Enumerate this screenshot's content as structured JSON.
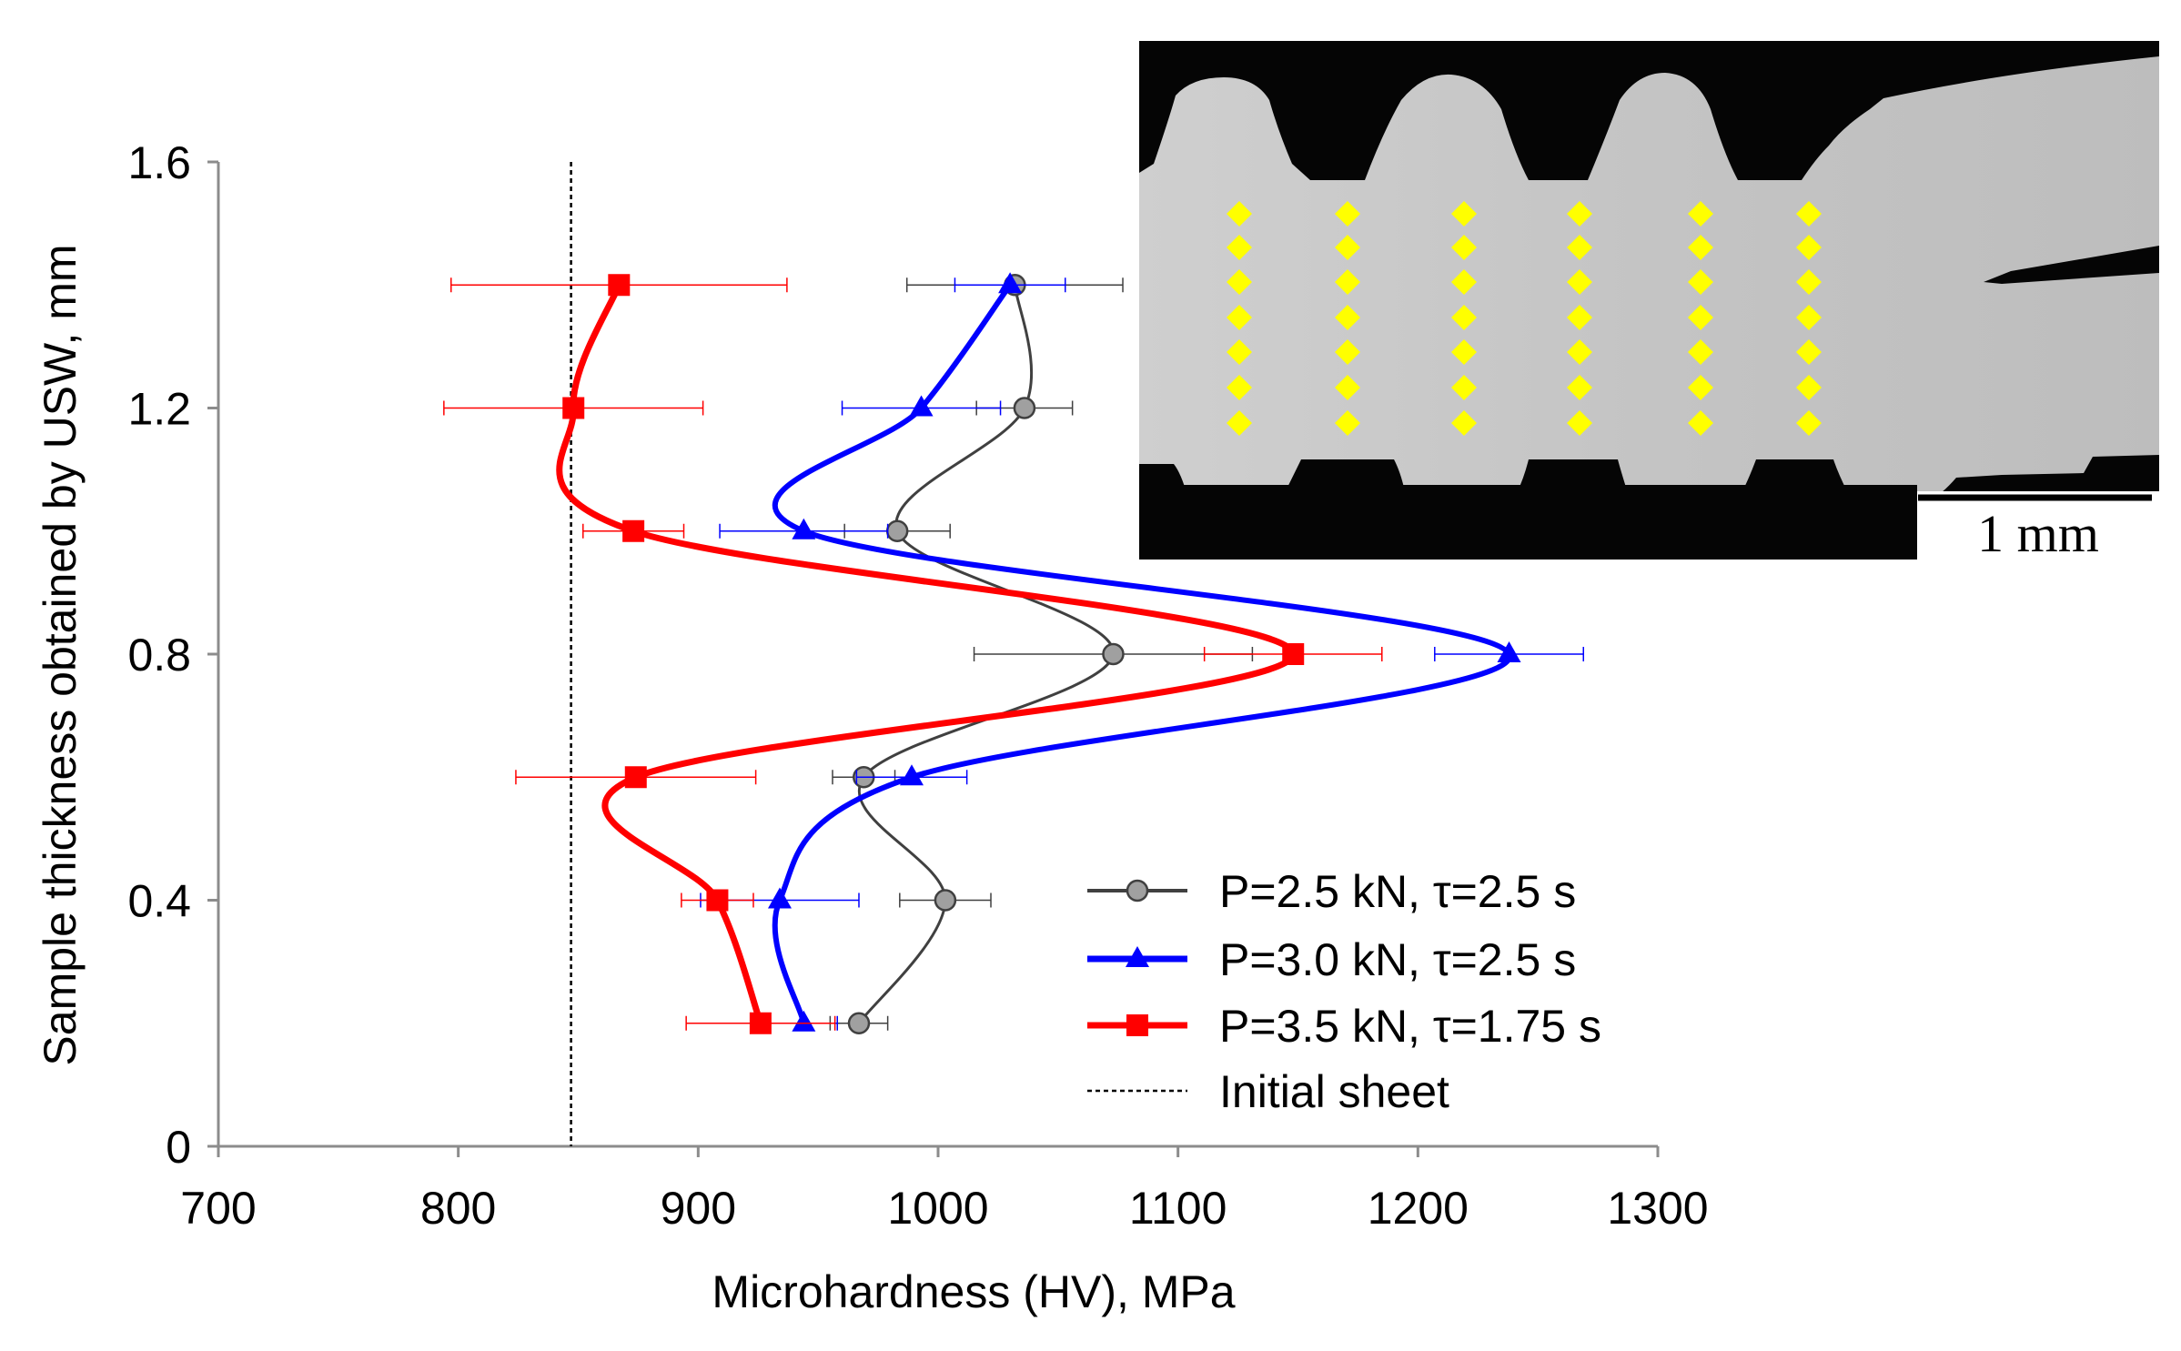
{
  "chart_data": {
    "type": "line",
    "orientation": "x-value-vs-y-position",
    "title": "",
    "xlabel": "Microhardness (HV), MPa",
    "ylabel": "Sample thickness obtained by USW, mm",
    "xlim": [
      700,
      1300
    ],
    "ylim": [
      0,
      1.6
    ],
    "x_ticks": [
      "700",
      "800",
      "900",
      "1000",
      "1100",
      "1200",
      "1300"
    ],
    "y_ticks": [
      "0",
      "0.4",
      "0.8",
      "1.2",
      "1.6"
    ],
    "series": [
      {
        "name": "P=2.5 kN, τ=2.5 s",
        "color": "#404040",
        "marker_fill": "#a0a0a0",
        "marker": "circle",
        "y": [
          0.2,
          0.4,
          0.6,
          0.8,
          1.0,
          1.2,
          1.4
        ],
        "x": [
          967,
          1003,
          969,
          1073,
          983,
          1036,
          1032
        ],
        "err": [
          12,
          19,
          13,
          58,
          22,
          20,
          45
        ]
      },
      {
        "name": "P=3.0 kN, τ=2.5 s",
        "color": "#0000ff",
        "marker_fill": "#0000ff",
        "marker": "triangle",
        "y": [
          0.2,
          0.4,
          0.6,
          0.8,
          1.0,
          1.2,
          1.4
        ],
        "x": [
          944,
          934,
          989,
          1238,
          944,
          993,
          1030
        ],
        "err": [
          14,
          33,
          23,
          31,
          35,
          33,
          23
        ]
      },
      {
        "name": "P=3.5 kN, τ=1.75 s",
        "color": "#ff0000",
        "marker_fill": "#ff0000",
        "marker": "square",
        "y": [
          0.2,
          0.4,
          0.6,
          0.8,
          1.0,
          1.2,
          1.4
        ],
        "x": [
          926,
          908,
          874,
          1148,
          873,
          848,
          867
        ],
        "err": [
          31,
          15,
          50,
          37,
          21,
          54,
          70
        ]
      }
    ],
    "reference_line": {
      "name": "Initial sheet",
      "x": 847,
      "style": "dashed",
      "color": "#000000"
    },
    "legend": {
      "position": "bottom-right"
    },
    "inset": {
      "description": "cross-section micrograph with indentation grid",
      "grid_columns": 6,
      "grid_rows": 7,
      "marker_color": "#ffff00",
      "scale_bar_label": "1 mm"
    }
  }
}
